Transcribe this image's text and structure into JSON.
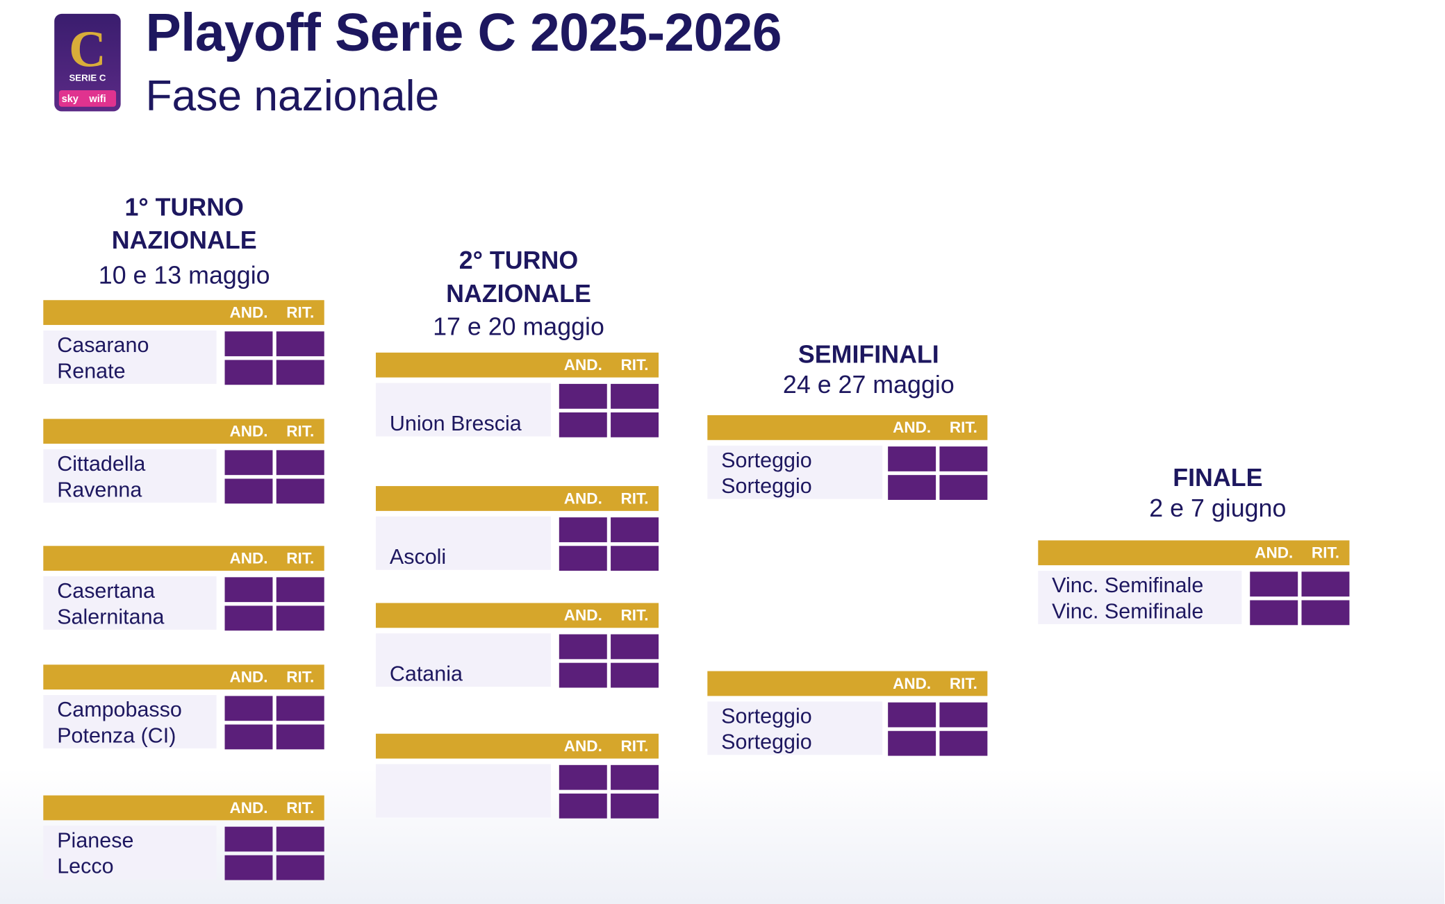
{
  "header": {
    "title": "Playoff Serie C 2025-2026",
    "subtitle": "Fase nazionale",
    "logo": {
      "league": "SERIE C",
      "sponsor_a": "sky",
      "sponsor_b": "wifi"
    }
  },
  "rounds": [
    {
      "title": [
        "1° TURNO",
        "NAZIONALE"
      ],
      "dates": "10 e 13 maggio",
      "columns": [
        "AND.",
        "RIT."
      ],
      "matches": [
        {
          "teams": [
            "Casarano",
            "Renate"
          ]
        },
        {
          "teams": [
            "Cittadella",
            "Ravenna"
          ]
        },
        {
          "teams": [
            "Casertana",
            "Salernitana"
          ]
        },
        {
          "teams": [
            "Campobasso",
            "Potenza (CI)"
          ]
        },
        {
          "teams": [
            "Pianese",
            "Lecco"
          ]
        }
      ]
    },
    {
      "title": [
        "2° TURNO",
        "NAZIONALE"
      ],
      "dates": "17 e 20 maggio",
      "columns": [
        "AND.",
        "RIT."
      ],
      "matches": [
        {
          "teams": [
            "Union Brescia"
          ]
        },
        {
          "teams": [
            "Ascoli"
          ]
        },
        {
          "teams": [
            "Catania"
          ]
        },
        {
          "teams": []
        }
      ]
    },
    {
      "title": [
        "SEMIFINALI"
      ],
      "dates": "24 e 27 maggio",
      "columns": [
        "AND.",
        "RIT."
      ],
      "matches": [
        {
          "teams": [
            "Sorteggio",
            "Sorteggio"
          ]
        },
        {
          "teams": [
            "Sorteggio",
            "Sorteggio"
          ]
        }
      ]
    },
    {
      "title": [
        "FINALE"
      ],
      "dates": "2 e 7 giugno",
      "columns": [
        "AND.",
        "RIT."
      ],
      "matches": [
        {
          "teams": [
            "Vinc. Semifinale",
            "Vinc. Semifinale"
          ]
        }
      ]
    }
  ]
}
